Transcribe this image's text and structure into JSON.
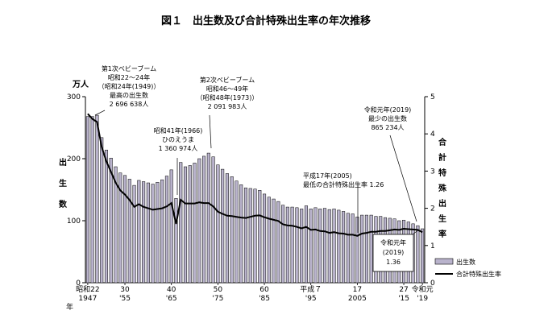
{
  "title": "図１　出生数及び合計特殊出生率の年次推移",
  "chart_data": {
    "type": "bar+line",
    "title": "図１　出生数及び合計特殊出生率の年次推移",
    "left_axis": {
      "unit": "万人",
      "label_chars": [
        "出",
        "生",
        "数"
      ],
      "ylim": [
        0,
        300
      ],
      "ticks": [
        "0",
        "100",
        "200",
        "300"
      ]
    },
    "right_axis": {
      "label_chars": [
        "合",
        "計",
        "特",
        "殊",
        "出",
        "生",
        "率"
      ],
      "ylim": [
        0,
        5
      ],
      "ticks": [
        "0",
        "1",
        "2",
        "3",
        "4",
        "5"
      ]
    },
    "x_tick_labels": [
      {
        "year": 1947,
        "top": "昭和22",
        "bottom": "1947",
        "extra": "年"
      },
      {
        "year": 1955,
        "top": "30",
        "bottom": "'55"
      },
      {
        "year": 1965,
        "top": "40",
        "bottom": "'65"
      },
      {
        "year": 1975,
        "top": "50",
        "bottom": "'75"
      },
      {
        "year": 1985,
        "top": "60",
        "bottom": "'85"
      },
      {
        "year": 1995,
        "top": "平成７",
        "bottom": "'95"
      },
      {
        "year": 2005,
        "top": "17",
        "bottom": "2005"
      },
      {
        "year": 2015,
        "top": "27",
        "bottom": "'15"
      },
      {
        "year": 2019,
        "top": "令和元",
        "bottom": "'19"
      }
    ],
    "years": [
      1947,
      1948,
      1949,
      1950,
      1951,
      1952,
      1953,
      1954,
      1955,
      1956,
      1957,
      1958,
      1959,
      1960,
      1961,
      1962,
      1963,
      1964,
      1965,
      1966,
      1967,
      1968,
      1969,
      1970,
      1971,
      1972,
      1973,
      1974,
      1975,
      1976,
      1977,
      1978,
      1979,
      1980,
      1981,
      1982,
      1983,
      1984,
      1985,
      1986,
      1987,
      1988,
      1989,
      1990,
      1991,
      1992,
      1993,
      1994,
      1995,
      1996,
      1997,
      1998,
      1999,
      2000,
      2001,
      2002,
      2003,
      2004,
      2005,
      2006,
      2007,
      2008,
      2009,
      2010,
      2011,
      2012,
      2013,
      2014,
      2015,
      2016,
      2017,
      2018,
      2019
    ],
    "series": [
      {
        "name": "出生数",
        "axis": "left",
        "color": "#b9b3cc",
        "values": [
          268,
          268,
          270,
          234,
          214,
          201,
          187,
          177,
          173,
          167,
          157,
          165,
          163,
          161,
          159,
          162,
          166,
          172,
          182,
          136,
          194,
          187,
          189,
          193,
          200,
          204,
          209,
          203,
          190,
          183,
          176,
          171,
          164,
          158,
          153,
          152,
          151,
          149,
          143,
          138,
          135,
          131,
          125,
          122,
          122,
          121,
          119,
          124,
          119,
          121,
          119,
          120,
          118,
          119,
          117,
          115,
          112,
          111,
          106,
          109,
          109,
          109,
          107,
          107,
          105,
          104,
          103,
          100,
          101,
          98,
          95,
          92,
          87
        ]
      },
      {
        "name": "合計特殊出生率",
        "axis": "right",
        "color": "#000000",
        "values": [
          4.54,
          4.4,
          4.32,
          3.65,
          3.26,
          2.98,
          2.69,
          2.48,
          2.37,
          2.22,
          2.04,
          2.11,
          2.04,
          2.0,
          1.96,
          1.98,
          2.0,
          2.05,
          2.14,
          1.58,
          2.23,
          2.13,
          2.13,
          2.13,
          2.16,
          2.14,
          2.14,
          2.05,
          1.91,
          1.85,
          1.8,
          1.79,
          1.77,
          1.75,
          1.74,
          1.77,
          1.8,
          1.81,
          1.76,
          1.72,
          1.69,
          1.66,
          1.57,
          1.54,
          1.53,
          1.5,
          1.46,
          1.5,
          1.42,
          1.43,
          1.39,
          1.38,
          1.34,
          1.36,
          1.33,
          1.32,
          1.29,
          1.29,
          1.26,
          1.32,
          1.34,
          1.37,
          1.37,
          1.39,
          1.39,
          1.41,
          1.43,
          1.42,
          1.45,
          1.44,
          1.43,
          1.42,
          1.36
        ]
      }
    ],
    "annotations": {
      "baby_boom_1": [
        "第1次ベビーブーム",
        "昭和22～24年",
        "（昭和24年(1949)）",
        "最高の出生数",
        "2 696 638人"
      ],
      "hinoeuma": [
        "昭和41年(1966)",
        "ひのえうま",
        "1 360 974人"
      ],
      "baby_boom_2": [
        "第2次ベビーブーム",
        "昭和46～49年",
        "（昭和48年(1973)）",
        "2 091 983人"
      ],
      "reiwa_min": [
        "令和元年(2019)",
        "最少の出生数",
        "865 234人"
      ],
      "heisei17": [
        "平成17年(2005)",
        "最低の合計特殊出生率 1.26"
      ],
      "reiwa_box": [
        "令和元年",
        "(2019)",
        "1.36"
      ]
    },
    "legend": {
      "position": "bottom-right",
      "items": [
        "出生数",
        "合計特殊出生率"
      ]
    }
  }
}
